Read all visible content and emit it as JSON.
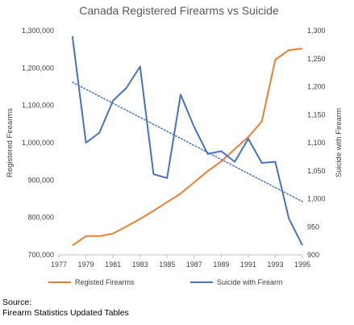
{
  "chart_data": {
    "type": "line",
    "title": "Canada Registered Firearms vs Suicide",
    "x_ticks": [
      "1977",
      "1979",
      "1981",
      "1983",
      "1985",
      "1987",
      "1989",
      "1991",
      "1993",
      "1995"
    ],
    "xlim": [
      1977,
      1995
    ],
    "y_left": {
      "label": "Registered Firearms",
      "range": [
        700000,
        1300000
      ],
      "ticks": [
        "700,000",
        "800,000",
        "900,000",
        "1,000,000",
        "1,100,000",
        "1,200,000",
        "1,300,000"
      ]
    },
    "y_right": {
      "label": "Suicide with Firearm",
      "range": [
        900,
        1300
      ],
      "ticks": [
        "900",
        "950",
        "1,000",
        "1,050",
        "1,100",
        "1,150",
        "1,200",
        "1,250",
        "1,300"
      ]
    },
    "series": [
      {
        "name": "Registed Firearms",
        "axis": "left",
        "color": "#ED7D31",
        "x": [
          1978,
          1979,
          1980,
          1981,
          1982,
          1983,
          1984,
          1985,
          1986,
          1987,
          1988,
          1989,
          1990,
          1991,
          1992,
          1993,
          1994,
          1995
        ],
        "values": [
          725000,
          750000,
          750000,
          757000,
          776000,
          796000,
          818000,
          841000,
          864000,
          894000,
          924000,
          950000,
          983000,
          1015000,
          1057000,
          1222000,
          1248000,
          1252000
        ]
      },
      {
        "name": "Suicide with Firearm",
        "axis": "right",
        "color": "#4472C4",
        "x": [
          1978,
          1979,
          1980,
          1981,
          1982,
          1983,
          1984,
          1985,
          1986,
          1987,
          1988,
          1989,
          1990,
          1991,
          1992,
          1993,
          1994,
          1995
        ],
        "values": [
          1290,
          1100,
          1118,
          1175,
          1198,
          1236,
          1044,
          1037,
          1186,
          1128,
          1080,
          1085,
          1066,
          1107,
          1064,
          1066,
          965,
          917
        ]
      }
    ],
    "trendline": {
      "series": "Suicide with Firearm",
      "axis": "right",
      "style": "dotted",
      "x": [
        1978,
        1995
      ],
      "values": [
        1208,
        995
      ]
    },
    "legend_placement": "bottom",
    "grid": false
  },
  "source": {
    "line1": "Source:",
    "line2": "Firearm Statistics Updated Tables"
  }
}
